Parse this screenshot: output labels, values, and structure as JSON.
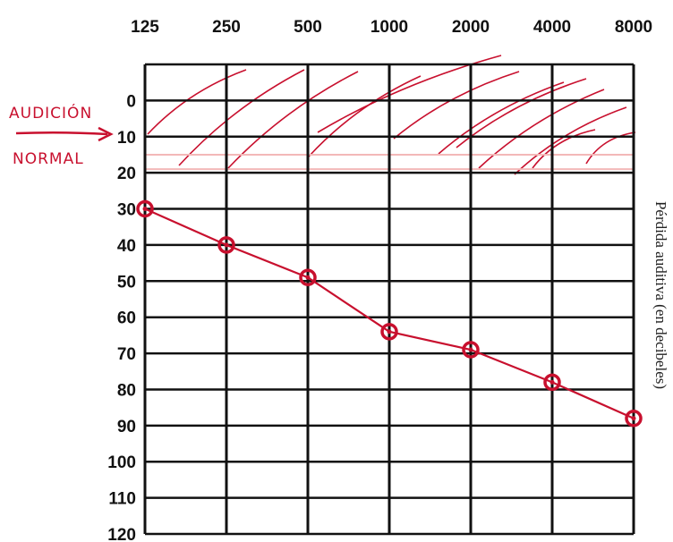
{
  "chart_data": {
    "type": "line",
    "x": [
      125,
      250,
      500,
      1000,
      2000,
      4000,
      8000
    ],
    "x_tick_labels": [
      "125",
      "250",
      "500",
      "1000",
      "2000",
      "4000",
      "8000"
    ],
    "y_tick_labels": [
      "0",
      "10",
      "20",
      "30",
      "40",
      "50",
      "60",
      "70",
      "80",
      "90",
      "100",
      "110",
      "120"
    ],
    "ylim": [
      -10,
      120
    ],
    "y_inverted": true,
    "x_scale": "log",
    "grid": true,
    "ylabel": "Pérdida auditiva (en decibeles)",
    "series": [
      {
        "values": [
          30,
          40,
          49,
          64,
          69,
          78,
          88
        ]
      }
    ],
    "annotations": {
      "line1": "AUDICIÓN",
      "line2": "NORMAL"
    },
    "colors": {
      "grid": "#111111",
      "data": "#c8102e",
      "hatch": "#c8102e",
      "band": "#f3b8b8"
    }
  }
}
